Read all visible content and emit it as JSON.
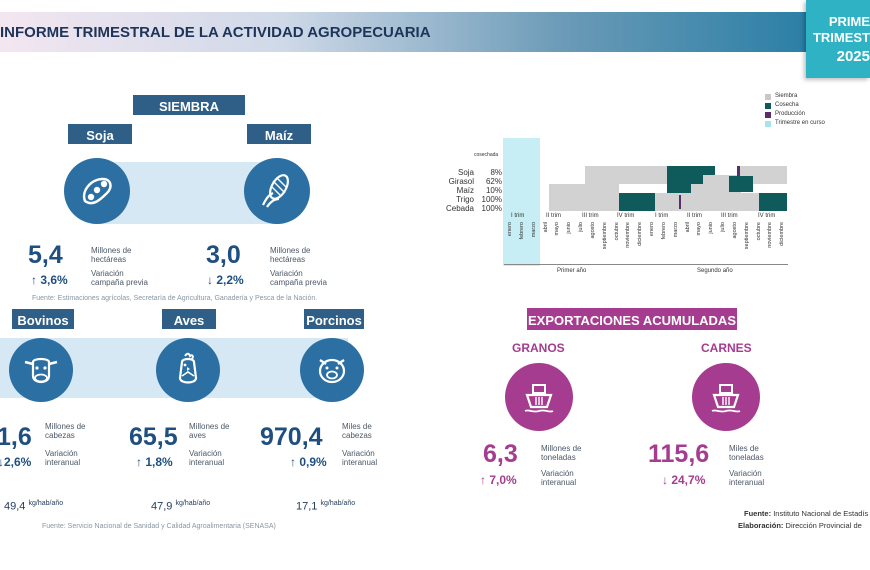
{
  "header": {
    "title": "INFORME TRIMESTRAL DE LA ACTIVIDAD AGROPECUARIA"
  },
  "corner": {
    "line1": "PRIME",
    "line2": "TRIMEST",
    "line3": "2025"
  },
  "siembra": {
    "title": "SIEMBRA",
    "soja": {
      "label": "Soja",
      "value": "5,4",
      "unit": "Millones de hectáreas",
      "variation": "↑ 3,6%",
      "variation_label": "Variación campaña previa",
      "icon": "soy-icon"
    },
    "maiz": {
      "label": "Maíz",
      "value": "3,0",
      "unit": "Millones de hectáreas",
      "variation": "↓ 2,2%",
      "variation_label": "Variación campaña previa",
      "icon": "corn-icon"
    },
    "source": "Fuente: Estimaciones agrícolas, Secretaría de Agricultura, Ganadería y Pesca de la Nación."
  },
  "ganado": {
    "bovinos": {
      "label": "Bovinos",
      "value": "1,6",
      "unit": "Millones de cabezas",
      "variation": "↓2,6%",
      "variation_label": "Variación interanual",
      "consumo": "49,4",
      "consumo_unit": "kg/hab/año",
      "icon": "cow-icon"
    },
    "aves": {
      "label": "Aves",
      "value": "65,5",
      "unit": "Millones de aves",
      "variation": "↑ 1,8%",
      "variation_label": "Variación interanual",
      "consumo": "47,9",
      "consumo_unit": "kg/hab/año",
      "icon": "chicken-icon"
    },
    "porcinos": {
      "label": "Porcinos",
      "value": "970,4",
      "unit": "Miles de cabezas",
      "variation": "↑ 0,9%",
      "variation_label": "Variación interanual",
      "consumo": "17,1",
      "consumo_unit": "kg/hab/año",
      "icon": "pig-icon"
    },
    "source": "Fuente: Servicio Nacional de Sanidad y Calidad Agroalimentaria (SENASA)"
  },
  "calendar": {
    "header_label": "cosechada",
    "crops": [
      {
        "name": "Soja",
        "pct": "8%"
      },
      {
        "name": "Girasol",
        "pct": "62%"
      },
      {
        "name": "Maíz",
        "pct": "10%"
      },
      {
        "name": "Trigo",
        "pct": "100%"
      },
      {
        "name": "Cebada",
        "pct": "100%"
      }
    ],
    "quarters": [
      "I trim",
      "II trim",
      "III trim",
      "IV trim",
      "I trim",
      "II trim",
      "III trim",
      "IV trim"
    ],
    "months": [
      "enero",
      "febrero",
      "marzo",
      "abril",
      "mayo",
      "junio",
      "julio",
      "agosto",
      "septiembre",
      "octubre",
      "noviembre",
      "diciembre",
      "enero",
      "febrero",
      "marzo",
      "abril",
      "mayo",
      "junio",
      "julio",
      "agosto",
      "septiembre",
      "octubre",
      "noviembre",
      "diciembre"
    ],
    "years": [
      "Primer año",
      "Segundo año"
    ],
    "legend": [
      {
        "label": "Siembra",
        "color": "#c8c8c8"
      },
      {
        "label": "Cosecha",
        "color": "#0f5a5a"
      },
      {
        "label": "Producción",
        "color": "#5c2b6a"
      },
      {
        "label": "Trimestre en curso",
        "color": "#a8e4ee"
      }
    ]
  },
  "exportaciones": {
    "title": "EXPORTACIONES ACUMULADAS",
    "granos": {
      "label": "GRANOS",
      "value": "6,3",
      "unit": "Millones de toneladas",
      "variation": "↑ 7,0%",
      "variation_label": "Variación interanual",
      "icon": "ship-icon"
    },
    "carnes": {
      "label": "CARNES",
      "value": "115,6",
      "unit": "Miles de toneladas",
      "variation": "↓ 24,7%",
      "variation_label": "Variación interanual",
      "icon": "ship-icon"
    }
  },
  "footer": {
    "fuente_label": "Fuente:",
    "fuente": "Instituto Nacional de Estadís",
    "elaboracion_label": "Elaboración:",
    "elaboracion": "Dirección Provincial de"
  }
}
